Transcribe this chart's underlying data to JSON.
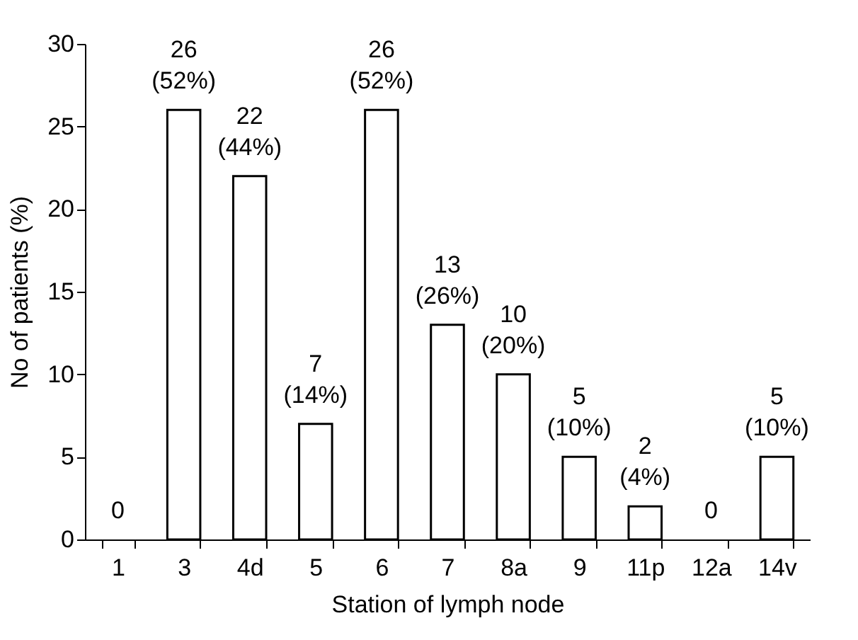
{
  "chart_data": {
    "type": "bar",
    "xlabel": "Station of lymph node",
    "ylabel": "No of patients (%)",
    "categories": [
      "1",
      "3",
      "4d",
      "5",
      "6",
      "7",
      "8a",
      "9",
      "11p",
      "12a",
      "14v"
    ],
    "values": [
      0,
      26,
      22,
      7,
      26,
      13,
      10,
      5,
      2,
      0,
      5
    ],
    "value_labels": [
      "0",
      "26\n(52%)",
      "22\n(44%)",
      "7\n(14%)",
      "26\n(52%)",
      "13\n(26%)",
      "10\n(20%)",
      "5\n(10%)",
      "2\n(4%)",
      "0",
      "5\n(10%)"
    ],
    "color": "#ffffff",
    "ylim": [
      0,
      30
    ],
    "yticks": [
      0,
      5,
      10,
      15,
      20,
      25,
      30
    ],
    "grid": false
  }
}
